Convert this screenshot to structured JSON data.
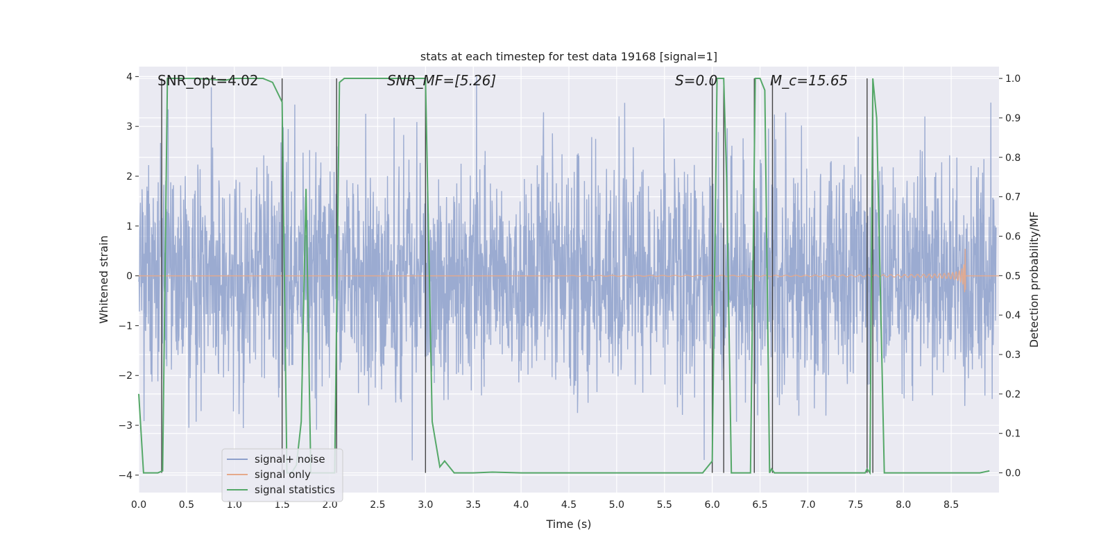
{
  "chart_data": {
    "type": "line",
    "title": "stats at each timestep for test data 19168 [signal=1]",
    "xlabel": "Time (s)",
    "ylabel": "Whitened strain",
    "ylabel_right": "Detection probability/MF",
    "xlim": [
      0.0,
      9.0
    ],
    "ylim": [
      -4.35,
      4.2
    ],
    "ylim_right": [
      -0.05,
      1.03
    ],
    "xticks": [
      "0.0",
      "0.5",
      "1.0",
      "1.5",
      "2.0",
      "2.5",
      "3.0",
      "3.5",
      "4.0",
      "4.5",
      "5.0",
      "5.5",
      "6.0",
      "6.5",
      "7.0",
      "7.5",
      "8.0",
      "8.5"
    ],
    "yticks": [
      "4",
      "3",
      "2",
      "1",
      "0",
      "−1",
      "−2",
      "−3",
      "−4"
    ],
    "yticks_right": [
      "1.0",
      "0.9",
      "0.8",
      "0.7",
      "0.6",
      "0.5",
      "0.4",
      "0.3",
      "0.2",
      "0.1",
      "0.0"
    ],
    "annotations": [
      {
        "text": "SNR_opt=4.02",
        "x": 0.2,
        "y": 3.8
      },
      {
        "text": "SNR_MF=[5.26]",
        "x": 2.6,
        "y": 3.8
      },
      {
        "text": "S=0.0",
        "x": 5.6,
        "y": 3.8
      },
      {
        "text": "M_c=15.65",
        "x": 6.6,
        "y": 3.8
      }
    ],
    "legend": {
      "placement": "lower-left",
      "entries": [
        "signal+ noise",
        "signal only",
        "signal statistics"
      ]
    },
    "series": [
      {
        "name": "signal+ noise",
        "color": "#8da0cb",
        "description": "whitened noisy strain, roughly within -3 to 3 with spikes to about +/-4"
      },
      {
        "name": "signal only",
        "color": "#e5a98a",
        "chirp": {
          "t_start": 4.5,
          "t_merge": 8.65,
          "peak_amplitude": 0.65,
          "min_amplitude": -0.9
        }
      },
      {
        "name": "signal statistics",
        "color": "#55a868",
        "x": [
          0.0,
          0.05,
          0.2,
          0.25,
          0.3,
          0.6,
          0.9,
          1.0,
          1.3,
          1.4,
          1.5,
          1.55,
          1.6,
          1.65,
          1.7,
          1.75,
          1.8,
          1.85,
          1.9,
          2.0,
          2.05,
          2.1,
          2.15,
          2.5,
          3.0,
          3.07,
          3.15,
          3.2,
          3.3,
          3.5,
          3.7,
          4.0,
          5.0,
          5.5,
          5.9,
          6.0,
          6.05,
          6.12,
          6.15,
          6.2,
          6.25,
          6.4,
          6.45,
          6.5,
          6.55,
          6.6,
          6.62,
          6.65,
          6.7,
          7.0,
          7.5,
          7.6,
          7.62,
          7.65,
          7.68,
          7.72,
          7.8,
          7.85,
          8.0,
          8.5,
          8.8,
          8.9
        ],
        "y": [
          0.2,
          0.0,
          0.0,
          0.005,
          1.0,
          1.0,
          0.995,
          1.0,
          1.0,
          0.99,
          0.94,
          0.0,
          0.0,
          0.02,
          0.13,
          0.72,
          0.0,
          0.0,
          0.0,
          0.0,
          0.0,
          0.99,
          1.0,
          1.0,
          1.0,
          0.13,
          0.015,
          0.03,
          0.0,
          0.0,
          0.002,
          0.0,
          0.0,
          0.0,
          0.0,
          0.03,
          1.0,
          1.0,
          0.75,
          0.0,
          0.0,
          0.0,
          1.0,
          1.0,
          0.97,
          0.0,
          0.01,
          0.0,
          0.0,
          0.0,
          0.0,
          0.0,
          0.01,
          0.0,
          1.0,
          0.9,
          0.0,
          0.0,
          0.0,
          0.0,
          0.0,
          0.005
        ]
      }
    ],
    "vlines": [
      0.24,
      1.5,
      2.07,
      3.0,
      6.0,
      6.12,
      6.44,
      6.63,
      7.62,
      7.68
    ]
  }
}
